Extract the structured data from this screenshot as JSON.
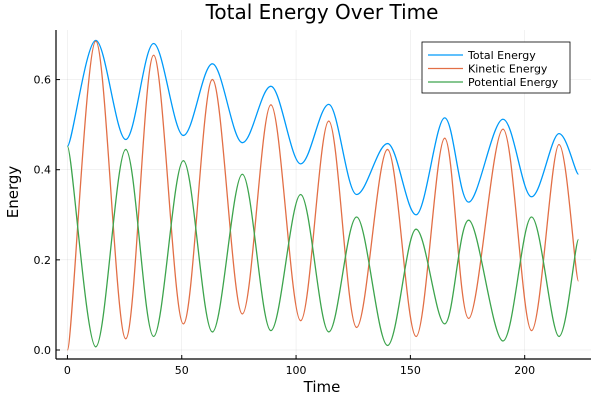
{
  "chart_data": {
    "type": "line",
    "title": "Total Energy Over Time",
    "xlabel": "Time",
    "ylabel": "Energy",
    "xlim": [
      -5,
      229
    ],
    "ylim": [
      -0.02,
      0.71
    ],
    "xticks": [
      0,
      50,
      100,
      150,
      200
    ],
    "xtick_labels": [
      "0",
      "50",
      "100",
      "150",
      "200"
    ],
    "yticks": [
      0.0,
      0.2,
      0.4,
      0.6
    ],
    "ytick_labels": [
      "0.0",
      "0.2",
      "0.4",
      "0.6"
    ],
    "grid": true,
    "legend_position": "top-right",
    "x": [
      0,
      12.4,
      25.5,
      37.7,
      50.7,
      63.4,
      76.5,
      89,
      102,
      114.3,
      126.5,
      140,
      152.5,
      165,
      175.5,
      190.5,
      203,
      215,
      223.5
    ],
    "series": [
      {
        "name": "Total Energy",
        "color": "#009af9",
        "values": [
          0.452,
          0.687,
          0.467,
          0.68,
          0.476,
          0.635,
          0.46,
          0.585,
          0.413,
          0.545,
          0.345,
          0.458,
          0.3,
          0.515,
          0.328,
          0.512,
          0.34,
          0.48,
          0.39
        ]
      },
      {
        "name": "Kinetic Energy",
        "color": "#e26f46",
        "values": [
          0.0,
          0.685,
          0.025,
          0.654,
          0.058,
          0.6,
          0.08,
          0.544,
          0.065,
          0.508,
          0.05,
          0.445,
          0.03,
          0.47,
          0.07,
          0.49,
          0.043,
          0.456,
          0.153
        ]
      },
      {
        "name": "Potential Energy",
        "color": "#3da44d",
        "values": [
          0.452,
          0.007,
          0.445,
          0.03,
          0.42,
          0.04,
          0.39,
          0.043,
          0.345,
          0.04,
          0.295,
          0.01,
          0.268,
          0.058,
          0.288,
          0.02,
          0.295,
          0.03,
          0.245
        ]
      }
    ]
  }
}
